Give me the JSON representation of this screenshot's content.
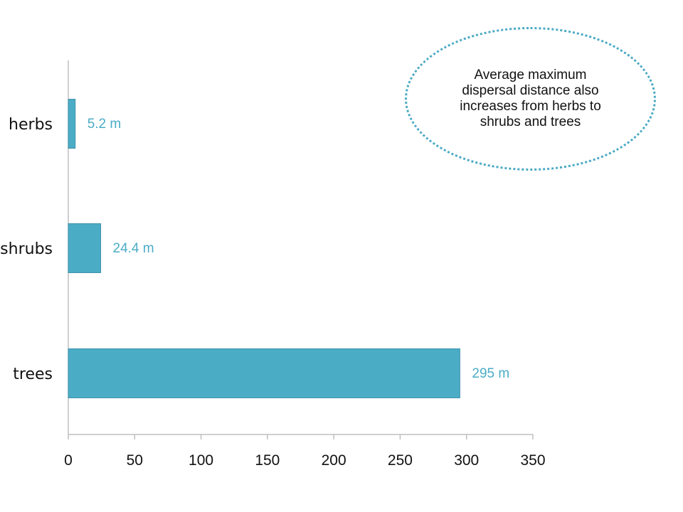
{
  "chart_data": {
    "type": "bar",
    "orientation": "horizontal",
    "categories": [
      "herbs",
      "shrubs",
      "trees"
    ],
    "values": [
      5.2,
      24.4,
      295
    ],
    "data_labels": [
      "5.2 m",
      "24.4 m",
      "295 m"
    ],
    "xlim": [
      0,
      350
    ],
    "xticks": [
      0,
      50,
      100,
      150,
      200,
      250,
      300,
      350
    ],
    "title": "",
    "xlabel": "",
    "ylabel": "",
    "grid": false,
    "colors": {
      "bar": "#4bacc6",
      "bar_edge": "#3f93aa",
      "label": "#4bacc6",
      "axis": "#bfbfbf"
    }
  },
  "callout": {
    "text": "Average maximum dispersal distance also increases from herbs to shrubs and trees",
    "border_color": "#4aa9c4"
  }
}
